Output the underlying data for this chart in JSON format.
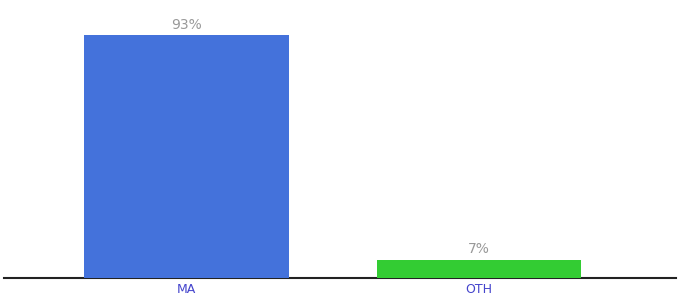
{
  "categories": [
    "MA",
    "OTH"
  ],
  "values": [
    93,
    7
  ],
  "bar_colors": [
    "#4472db",
    "#33cc33"
  ],
  "label_texts": [
    "93%",
    "7%"
  ],
  "background_color": "#ffffff",
  "ylim": [
    0,
    105
  ],
  "bar_width": 0.28,
  "label_fontsize": 10,
  "tick_fontsize": 9,
  "label_color": "#999999",
  "tick_color": "#4444cc",
  "spine_color": "#222222"
}
